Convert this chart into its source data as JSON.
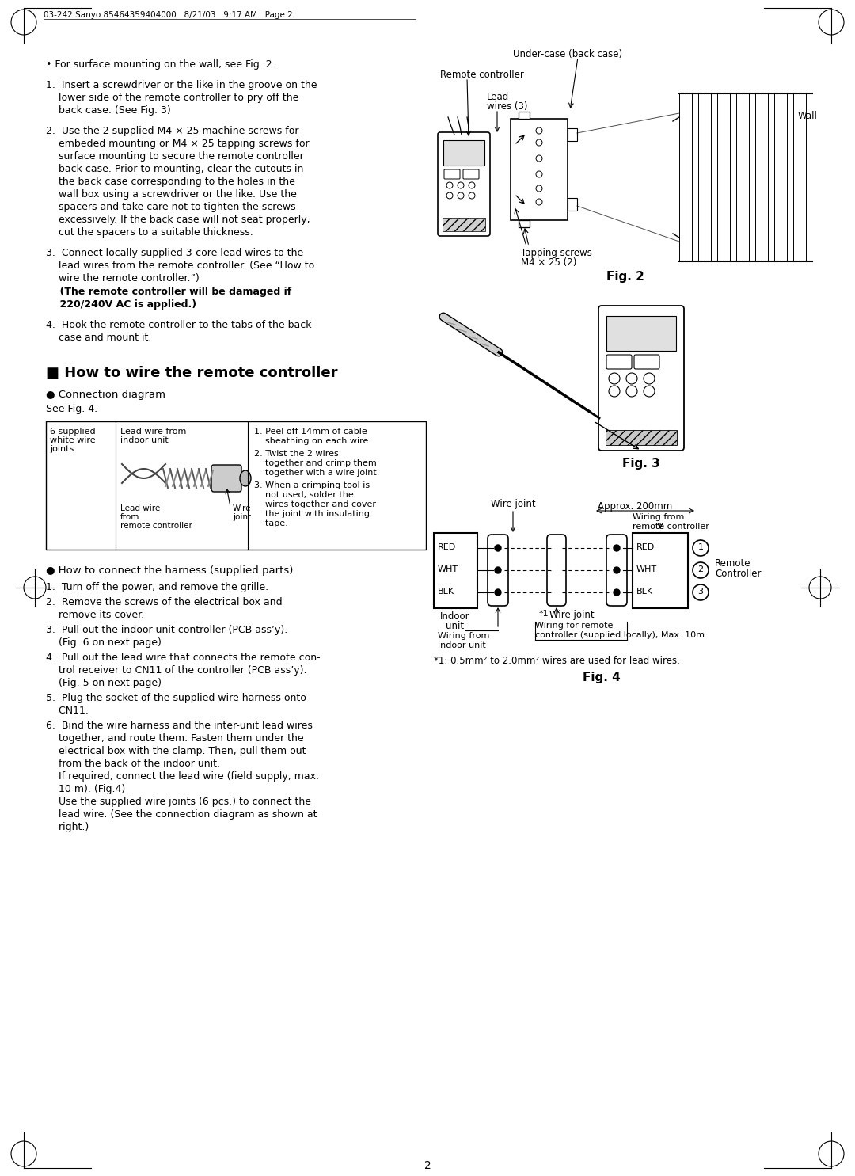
{
  "header": "03-242.Sanyo.85464359404000   8/21/03   9:17 AM   Page 2",
  "fig2_label": "Fig. 2",
  "fig3_label": "Fig. 3",
  "fig4_label": "Fig. 4",
  "fig4_footnote": "*1: 0.5mm² to 2.0mm² wires are used for lead wires.",
  "fig4_colors": [
    "RED",
    "WHT",
    "BLK"
  ],
  "fig4_numbers": [
    "1",
    "2",
    "3"
  ],
  "page_number": "2",
  "bg_color": "#ffffff"
}
